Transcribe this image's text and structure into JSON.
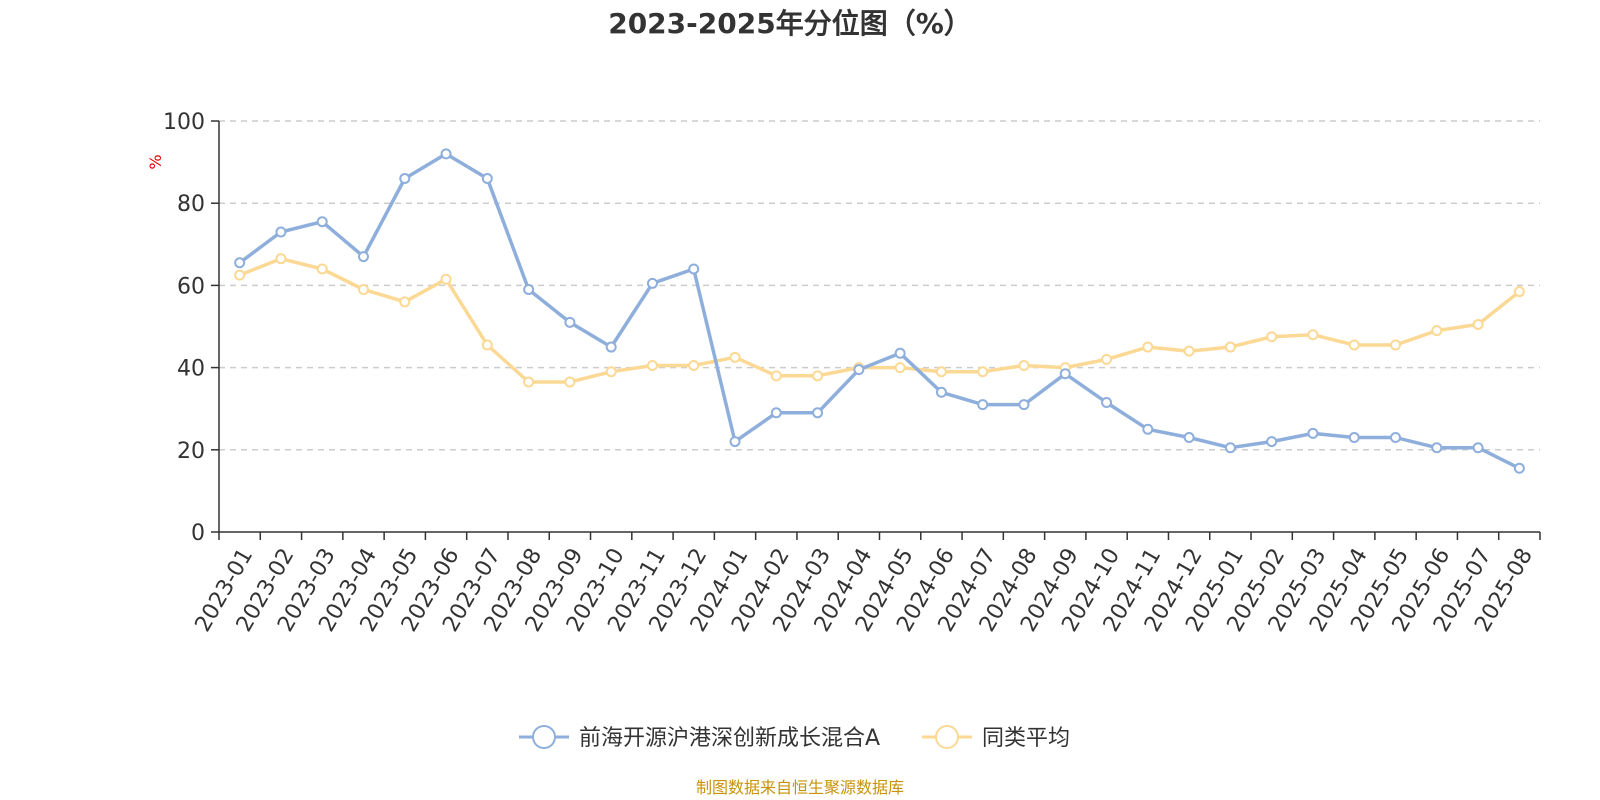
{
  "chart_data": {
    "type": "line",
    "title": "2023-2025年分位图（%）",
    "ylabel": "%",
    "ylim": [
      0,
      100
    ],
    "yticks": [
      0,
      20,
      40,
      60,
      80,
      100
    ],
    "grid": true,
    "legend_position": "bottom",
    "categories": [
      "2023-01",
      "2023-02",
      "2023-03",
      "2023-04",
      "2023-05",
      "2023-06",
      "2023-07",
      "2023-08",
      "2023-09",
      "2023-10",
      "2023-11",
      "2023-12",
      "2024-01",
      "2024-02",
      "2024-03",
      "2024-04",
      "2024-05",
      "2024-06",
      "2024-07",
      "2024-08",
      "2024-09",
      "2024-10",
      "2024-11",
      "2024-12",
      "2025-01",
      "2025-02",
      "2025-03",
      "2025-04",
      "2025-05",
      "2025-06",
      "2025-07",
      "2025-08"
    ],
    "series": [
      {
        "name": "前海开源沪港深创新成长混合A",
        "color": "#8eaedc",
        "values": [
          65.5,
          73,
          75.5,
          67,
          86,
          92,
          86,
          59,
          51,
          45,
          60.5,
          64,
          22,
          29,
          29,
          39.5,
          43.5,
          34,
          31,
          31,
          38.5,
          31.5,
          25,
          23,
          20.5,
          22,
          24,
          23,
          23,
          20.5,
          20.5,
          15.5
        ]
      },
      {
        "name": "同类平均",
        "color": "#fbd994",
        "values": [
          62.5,
          66.5,
          64,
          59,
          56,
          61.5,
          45.5,
          36.5,
          36.5,
          39,
          40.5,
          40.5,
          42.5,
          38,
          38,
          40,
          40,
          39,
          39,
          40.5,
          40,
          42,
          45,
          44,
          45,
          47.5,
          48,
          45.5,
          45.5,
          49,
          50.5,
          58.5
        ]
      }
    ]
  },
  "footer": {
    "source": "制图数据来自恒生聚源数据库",
    "source_color": "#c8920a"
  },
  "colors": {
    "axis": "#333333",
    "grid": "#cccccc",
    "ylabel": "#e60000"
  }
}
